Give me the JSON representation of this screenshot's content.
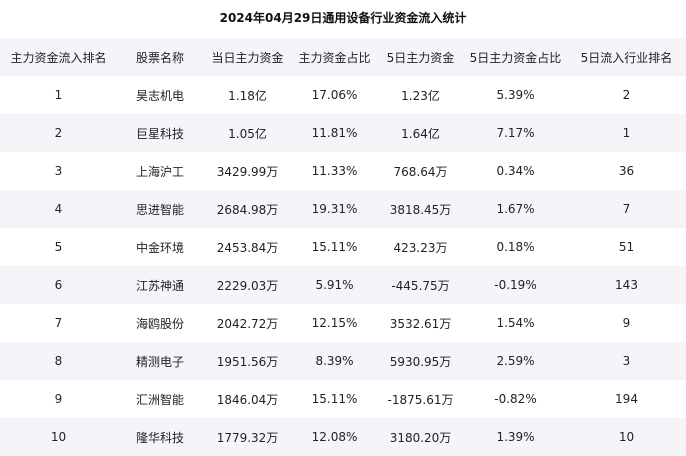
{
  "title": "2024年04月29日通用设备行业资金流入统计",
  "table": {
    "headers": [
      "主力资金流入排名",
      "股票名称",
      "当日主力资金",
      "主力资金占比",
      "5日主力资金",
      "5日主力资金占比",
      "5日流入行业排名"
    ],
    "rows": [
      [
        "1",
        "昊志机电",
        "1.18亿",
        "17.06%",
        "1.23亿",
        "5.39%",
        "2"
      ],
      [
        "2",
        "巨星科技",
        "1.05亿",
        "11.81%",
        "1.64亿",
        "7.17%",
        "1"
      ],
      [
        "3",
        "上海沪工",
        "3429.99万",
        "11.33%",
        "768.64万",
        "0.34%",
        "36"
      ],
      [
        "4",
        "思进智能",
        "2684.98万",
        "19.31%",
        "3818.45万",
        "1.67%",
        "7"
      ],
      [
        "5",
        "中金环境",
        "2453.84万",
        "15.11%",
        "423.23万",
        "0.18%",
        "51"
      ],
      [
        "6",
        "江苏神通",
        "2229.03万",
        "5.91%",
        "-445.75万",
        "-0.19%",
        "143"
      ],
      [
        "7",
        "海鸥股份",
        "2042.72万",
        "12.15%",
        "3532.61万",
        "1.54%",
        "9"
      ],
      [
        "8",
        "精测电子",
        "1951.56万",
        "8.39%",
        "5930.95万",
        "2.59%",
        "3"
      ],
      [
        "9",
        "汇洲智能",
        "1846.04万",
        "15.11%",
        "-1875.61万",
        "-0.82%",
        "194"
      ],
      [
        "10",
        "隆华科技",
        "1779.32万",
        "12.08%",
        "3180.20万",
        "1.39%",
        "10"
      ]
    ]
  }
}
